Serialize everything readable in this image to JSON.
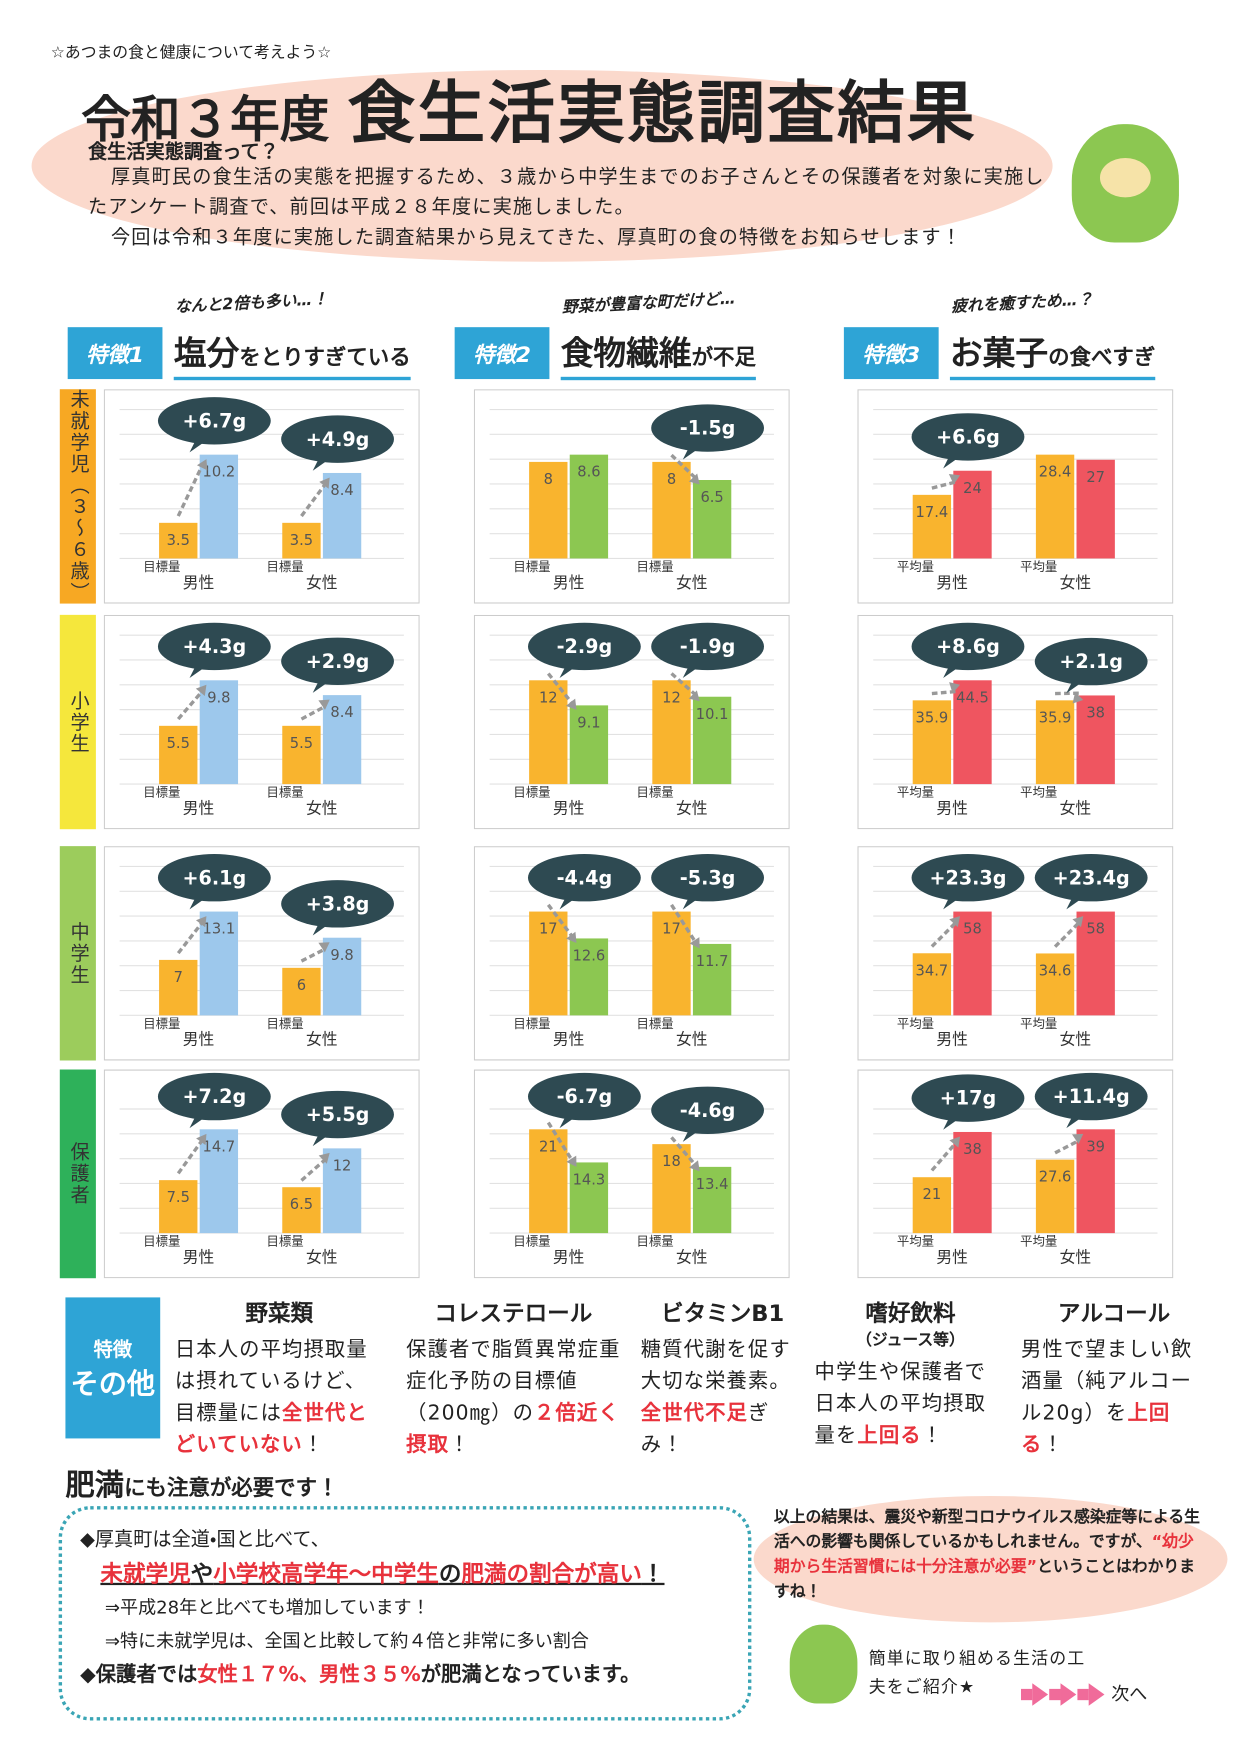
{
  "header": {
    "top_note": "☆あつまの食と健康について考えよう☆",
    "title_year": "令和３年度",
    "title_main": "食生活実態調査結果",
    "intro_heading": "食生活実態調査って？",
    "intro_paragraphs": [
      "厚真町民の食生活の実態を把握するため、３歳から中学生までのお子さんとその保護者を対象に実施したアンケート調査で、前回は平成２８年度に実施しました。",
      "今回は令和３年度に実施した調査結果から見えてきた、厚真町の食の特徴をお知らせします！"
    ]
  },
  "age_groups": [
    {
      "name": "未就学児（３～６歳）",
      "color": "#f7a823"
    },
    {
      "name": "小学生",
      "color": "#f5e73c"
    },
    {
      "name": "中学生",
      "color": "#9ccc5c"
    },
    {
      "name": "保護者",
      "color": "#2eb15a"
    }
  ],
  "features": [
    {
      "label": "特徴1",
      "tagline": "なんと2倍も多い…！",
      "heading": [
        "塩分",
        "をとりすぎている"
      ],
      "baseline_label": "目標量",
      "color_base": "#f9b42e",
      "color_actual": "#9dc8ec",
      "panels": [
        {
          "groups": [
            {
              "name": "男性",
              "values": [
                3.5,
                10.2
              ],
              "diff": "+6.7g"
            },
            {
              "name": "女性",
              "values": [
                3.5,
                8.4
              ],
              "diff": "+4.9g"
            }
          ]
        },
        {
          "groups": [
            {
              "name": "男性",
              "values": [
                5.5,
                9.8
              ],
              "diff": "+4.3g"
            },
            {
              "name": "女性",
              "values": [
                5.5,
                8.4
              ],
              "diff": "+2.9g"
            }
          ]
        },
        {
          "groups": [
            {
              "name": "男性",
              "values": [
                7,
                13.1
              ],
              "diff": "+6.1g"
            },
            {
              "name": "女性",
              "values": [
                6,
                9.8
              ],
              "diff": "+3.8g"
            }
          ]
        },
        {
          "groups": [
            {
              "name": "男性",
              "values": [
                7.5,
                14.7
              ],
              "diff": "+7.2g"
            },
            {
              "name": "女性",
              "values": [
                6.5,
                12
              ],
              "diff": "+5.5g"
            }
          ]
        }
      ]
    },
    {
      "label": "特徴2",
      "tagline": "野菜が豊富な町だけど…",
      "heading": [
        "食物繊維",
        "が不足"
      ],
      "baseline_label": "目標量",
      "color_base": "#f9b42e",
      "color_actual": "#8cc751",
      "panels": [
        {
          "groups": [
            {
              "name": "男性",
              "values": [
                8,
                8.6
              ]
            },
            {
              "name": "女性",
              "values": [
                8,
                6.5
              ],
              "diff": "-1.5g"
            }
          ]
        },
        {
          "groups": [
            {
              "name": "男性",
              "values": [
                12,
                9.1
              ],
              "diff": "-2.9g"
            },
            {
              "name": "女性",
              "values": [
                12,
                10.1
              ],
              "diff": "-1.9g"
            }
          ]
        },
        {
          "groups": [
            {
              "name": "男性",
              "values": [
                17,
                12.6
              ],
              "diff": "-4.4g"
            },
            {
              "name": "女性",
              "values": [
                17,
                11.7
              ],
              "diff": "-5.3g"
            }
          ]
        },
        {
          "groups": [
            {
              "name": "男性",
              "values": [
                21,
                14.3
              ],
              "diff": "-6.7g"
            },
            {
              "name": "女性",
              "values": [
                18,
                13.4
              ],
              "diff": "-4.6g"
            }
          ]
        }
      ]
    },
    {
      "label": "特徴3",
      "tagline": "疲れを癒すため…？",
      "heading": [
        "お菓子",
        "の食べすぎ"
      ],
      "baseline_label": "平均量",
      "color_base": "#f9b42e",
      "color_actual": "#ef5560",
      "panels": [
        {
          "groups": [
            {
              "name": "男性",
              "values": [
                17.4,
                24
              ],
              "diff": "+6.6g"
            },
            {
              "name": "女性",
              "values": [
                28.4,
                27
              ]
            }
          ]
        },
        {
          "groups": [
            {
              "name": "男性",
              "values": [
                35.9,
                44.5
              ],
              "diff": "+8.6g"
            },
            {
              "name": "女性",
              "values": [
                35.9,
                38
              ],
              "diff": "+2.1g"
            }
          ]
        },
        {
          "groups": [
            {
              "name": "男性",
              "values": [
                34.7,
                58
              ],
              "diff": "+23.3g"
            },
            {
              "name": "女性",
              "values": [
                34.6,
                58
              ],
              "diff": "+23.4g"
            }
          ]
        },
        {
          "groups": [
            {
              "name": "男性",
              "values": [
                21,
                38
              ],
              "diff": "+17g"
            },
            {
              "name": "女性",
              "values": [
                27.6,
                39
              ],
              "diff": "+11.4g"
            }
          ]
        }
      ]
    }
  ],
  "others": {
    "label_top": "特徴",
    "label_main": "その他",
    "items": [
      {
        "title": "野菜類",
        "body": [
          {
            "text": "日本人の平均摂取量は摂れているけど、目標量には"
          },
          {
            "text": "全世代とどいていない",
            "em": true
          },
          {
            "text": "！"
          }
        ]
      },
      {
        "title": "コレステロール",
        "body": [
          {
            "text": "保護者で脂質異常症重症化予防の目標値（200㎎）の"
          },
          {
            "text": "２倍近く摂取",
            "em": true
          },
          {
            "text": "！"
          }
        ]
      },
      {
        "title": "ビタミンB1",
        "body": [
          {
            "text": "糖質代謝を促す大切な栄養素。"
          },
          {
            "text": "全世代不足",
            "em": true
          },
          {
            "text": "ぎみ！"
          }
        ]
      },
      {
        "title": "嗜好飲料",
        "subtitle": "（ジュース等）",
        "body": [
          {
            "text": "中学生や保護者で日本人の平均摂取量を"
          },
          {
            "text": "上回る",
            "em": true
          },
          {
            "text": "！"
          }
        ]
      },
      {
        "title": "アルコール",
        "body": [
          {
            "text": "男性で望ましい飲酒量（純アルコール20g）を"
          },
          {
            "text": "上回る",
            "em": true
          },
          {
            "text": "！"
          }
        ]
      }
    ]
  },
  "obesity": {
    "heading": [
      "肥満",
      "にも注意が必要です！"
    ],
    "lines": [
      [
        {
          "text": "◆厚真町は全道・国と比べて、"
        }
      ],
      [
        {
          "text": "未就学児",
          "em": true
        },
        {
          "text": "や"
        },
        {
          "text": "小学校高学年～中学生",
          "em": true
        },
        {
          "text": "の"
        },
        {
          "text": "肥満の割合が高い",
          "em": true
        },
        {
          "text": "！"
        }
      ],
      [
        {
          "text": "⇒平成28年と比べても増加しています！"
        }
      ],
      [
        {
          "text": "⇒特に未就学児は、全国と比較して"
        },
        {
          "text": "約４倍"
        },
        {
          "text": "と非常に多い割合"
        }
      ],
      [
        {
          "text": "◆保護者では"
        },
        {
          "text": "女性１７%、男性３５%",
          "em": true
        },
        {
          "text": "が肥満となっています。"
        }
      ]
    ]
  },
  "note": [
    {
      "text": "以上の結果は、震災や新型コロナウイルス感染症等による生活への影響も関係しているかもしれません。ですが、"
    },
    {
      "text": "“幼少期から生活習慣には十分注意が必要”",
      "em": true
    },
    {
      "text": "ということはわかりますね！"
    }
  ],
  "footer": {
    "text": "簡単に取り組める生活の工夫をご紹介★",
    "next": "次へ"
  }
}
